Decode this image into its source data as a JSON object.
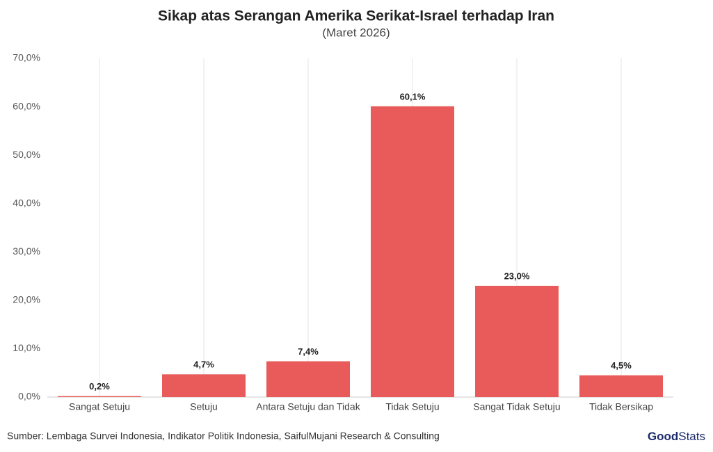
{
  "chart_data": {
    "type": "bar",
    "title": "Sikap atas Serangan Amerika Serikat-Israel terhadap Iran",
    "subtitle": "(Maret 2026)",
    "categories": [
      "Sangat Setuju",
      "Setuju",
      "Antara Setuju dan Tidak",
      "Tidak Setuju",
      "Sangat Tidak Setuju",
      "Tidak Bersikap"
    ],
    "values": [
      0.2,
      4.7,
      7.4,
      60.1,
      23.0,
      4.5
    ],
    "value_labels": [
      "0,2%",
      "4,7%",
      "7,4%",
      "60,1%",
      "23,0%",
      "4,5%"
    ],
    "color": "#e85b5a",
    "ylim": [
      0,
      70
    ],
    "yticks": [
      {
        "value": 0,
        "label": "0,0%"
      },
      {
        "value": 10,
        "label": "10,0%"
      },
      {
        "value": 20,
        "label": "20,0%"
      },
      {
        "value": 30,
        "label": "30,0%"
      },
      {
        "value": 40,
        "label": "40,0%"
      },
      {
        "value": 50,
        "label": "50,0%"
      },
      {
        "value": 60,
        "label": "60,0%"
      },
      {
        "value": 70,
        "label": "70,0%"
      }
    ],
    "grid": "x",
    "source": "Sumber: Lembaga Survei Indonesia, Indikator Politik Indonesia, SaifulMujani Research & Consulting",
    "logo": [
      "Good",
      "Stats"
    ]
  }
}
